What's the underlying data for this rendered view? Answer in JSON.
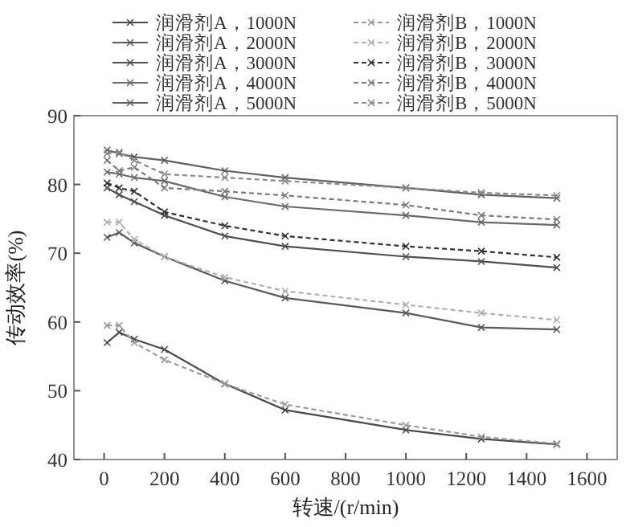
{
  "chart_data": {
    "type": "line",
    "xlabel": "转速/(r/min)",
    "ylabel": "传动效率(%)",
    "xlim": [
      -100,
      1700
    ],
    "ylim": [
      40,
      90
    ],
    "xticks": [
      0,
      200,
      400,
      600,
      800,
      1000,
      1200,
      1400,
      1600
    ],
    "yticks": [
      40,
      50,
      60,
      70,
      80,
      90
    ],
    "grid": false,
    "legend": "top",
    "marker": "cross",
    "x": [
      10,
      50,
      100,
      200,
      400,
      600,
      1000,
      1250,
      1500
    ],
    "series": [
      {
        "name": "润滑剂A，1000N",
        "color": "#4a4a4a",
        "line_style": "solid",
        "values": [
          57,
          58.5,
          57.5,
          56,
          51,
          47.2,
          44.3,
          43,
          42.2
        ]
      },
      {
        "name": "润滑剂B，1000N",
        "color": "#9a9a9a",
        "line_style": "dashed",
        "values": [
          59.5,
          59.5,
          57,
          54.5,
          51,
          48,
          45,
          43.3,
          42.3
        ]
      },
      {
        "name": "润滑剂A，2000N",
        "color": "#5a5a5a",
        "line_style": "solid",
        "values": [
          72.3,
          73,
          71.5,
          69.5,
          66,
          63.5,
          61.3,
          59.2,
          58.9
        ]
      },
      {
        "name": "润滑剂B，2000N",
        "color": "#b0b0b0",
        "line_style": "dashed",
        "values": [
          74.5,
          74.5,
          72,
          69.5,
          66.5,
          64.5,
          62.5,
          61.3,
          60.3
        ]
      },
      {
        "name": "润滑剂A，3000N",
        "color": "#505050",
        "line_style": "solid",
        "values": [
          79.5,
          78.5,
          77.5,
          75.5,
          72.5,
          71,
          69.5,
          68.8,
          67.9
        ]
      },
      {
        "name": "润滑剂B，3000N",
        "color": "#303030",
        "line_style": "dashed",
        "values": [
          80.2,
          79.5,
          79,
          76,
          74,
          72.5,
          71,
          70.3,
          69.4
        ]
      },
      {
        "name": "润滑剂A，4000N",
        "color": "#6a6a6a",
        "line_style": "solid",
        "values": [
          81.8,
          81.5,
          81,
          80.5,
          78.2,
          76.8,
          75.5,
          74.5,
          74.1
        ]
      },
      {
        "name": "润滑剂B，4000N",
        "color": "#7a7a7a",
        "line_style": "dashed",
        "values": [
          83.5,
          82,
          82.5,
          79.5,
          79,
          78.4,
          77,
          75.5,
          74.9
        ]
      },
      {
        "name": "润滑剂A，5000N",
        "color": "#606060",
        "line_style": "solid",
        "values": [
          85,
          84.5,
          84,
          83.5,
          82,
          81,
          79.5,
          78.5,
          78
        ]
      },
      {
        "name": "润滑剂B，5000N",
        "color": "#8a8a8a",
        "line_style": "dashed",
        "values": [
          84.5,
          84.7,
          83.5,
          81.5,
          81,
          80.5,
          79.5,
          78.8,
          78.4
        ]
      }
    ]
  }
}
